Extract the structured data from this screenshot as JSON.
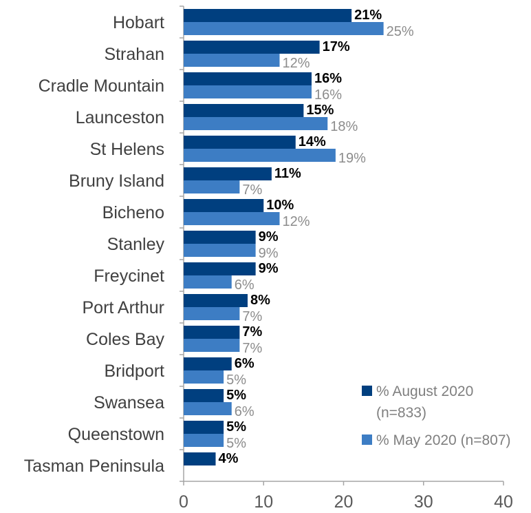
{
  "chart_data": {
    "type": "bar",
    "orientation": "horizontal",
    "categories": [
      "Hobart",
      "Strahan",
      "Cradle Mountain",
      "Launceston",
      "St Helens",
      "Bruny Island",
      "Bicheno",
      "Stanley",
      "Freycinet",
      "Port Arthur",
      "Coles Bay",
      "Bridport",
      "Swansea",
      "Queenstown",
      "Tasman Peninsula"
    ],
    "series": [
      {
        "name": "% August 2020 (n=833)",
        "name_lines": [
          "% August 2020",
          "(n=833)"
        ],
        "color": "#003f7f",
        "values": [
          21,
          17,
          16,
          15,
          14,
          11,
          10,
          9,
          9,
          8,
          7,
          6,
          5,
          5,
          4
        ],
        "labels": [
          "21%",
          "17%",
          "16%",
          "15%",
          "14%",
          "11%",
          "10%",
          "9%",
          "9%",
          "8%",
          "7%",
          "6%",
          "5%",
          "5%",
          "4%"
        ]
      },
      {
        "name": "% May 2020 (n=807)",
        "name_lines": [
          "% May 2020 (n=807)"
        ],
        "color": "#3d7dc4",
        "values": [
          25,
          12,
          16,
          18,
          19,
          7,
          12,
          9,
          6,
          7,
          7,
          5,
          6,
          5,
          null
        ],
        "labels": [
          "25%",
          "12%",
          "16%",
          "18%",
          "19%",
          "7%",
          "12%",
          "9%",
          "6%",
          "7%",
          "7%",
          "5%",
          "6%",
          "5%",
          null
        ]
      }
    ],
    "xlim": [
      0,
      40
    ],
    "xticks": [
      "0",
      "10",
      "20",
      "30",
      "40"
    ],
    "title": "",
    "xlabel": "",
    "ylabel": "",
    "grid": false,
    "legend_position": "bottom-right"
  }
}
